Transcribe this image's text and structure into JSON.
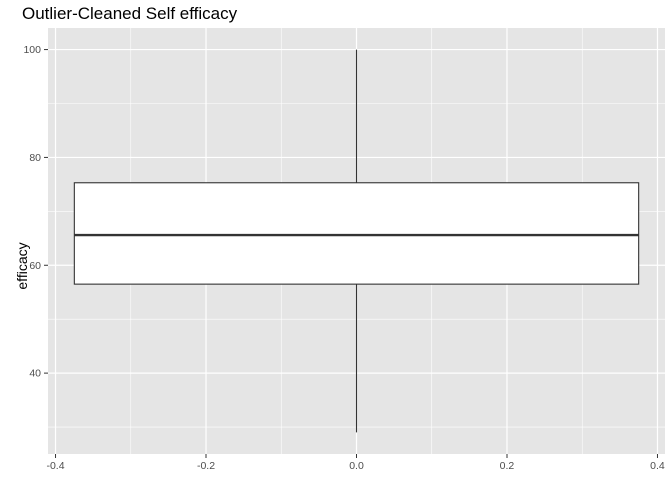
{
  "chart_data": {
    "type": "box",
    "title": "Outlier-Cleaned Self efficacy",
    "xlabel": "",
    "ylabel": "efficacy",
    "xlim": [
      -0.41,
      0.41
    ],
    "ylim": [
      25,
      104
    ],
    "x_ticks": [
      -0.4,
      -0.2,
      0.0,
      0.2,
      0.4
    ],
    "x_tick_labels": [
      "-0.4",
      "-0.2",
      "0.0",
      "0.2",
      "0.4"
    ],
    "y_ticks": [
      40,
      60,
      80,
      100
    ],
    "y_tick_labels": [
      "40",
      "60",
      "80",
      "100"
    ],
    "grid": true,
    "box": {
      "x_center": 0.0,
      "x_left": -0.375,
      "x_right": 0.375,
      "min": 29,
      "q1": 56.5,
      "median": 65.6,
      "q3": 75.3,
      "max": 100
    },
    "colors": {
      "panel_background": "#e5e5e5",
      "grid_line": "#ffffff",
      "box_fill": "#ffffff",
      "box_stroke": "#333333"
    }
  }
}
